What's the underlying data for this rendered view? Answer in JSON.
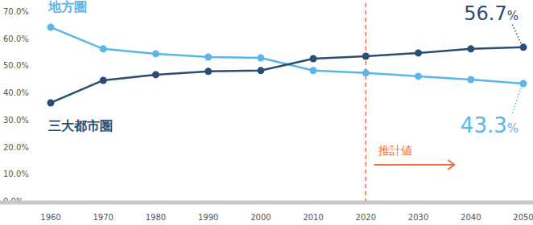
{
  "chart_data": {
    "type": "line",
    "x": [
      1960,
      1970,
      1980,
      1990,
      2000,
      2010,
      2020,
      2030,
      2040,
      2050
    ],
    "xlim": [
      1960,
      2050
    ],
    "xticks": [
      1960,
      1970,
      1980,
      1990,
      2000,
      2010,
      2020,
      2030,
      2040,
      2050
    ],
    "ylim": [
      0,
      70
    ],
    "yticks": [
      {
        "value": 0,
        "label": "0.0%"
      },
      {
        "value": 10,
        "label": "10.0%"
      },
      {
        "value": 20,
        "label": "20.0%"
      },
      {
        "value": 30,
        "label": "30.0%"
      },
      {
        "value": 40,
        "label": "40.0%"
      },
      {
        "value": 50,
        "label": "50.0%"
      },
      {
        "value": 60,
        "label": "60.0%"
      },
      {
        "value": 70,
        "label": "70.0%"
      }
    ],
    "grid": false,
    "marker": "circle",
    "series": [
      {
        "name": "地方圏",
        "color": "#5bb5e8",
        "values": [
          64.1,
          56.1,
          54.3,
          53.1,
          52.8,
          48.1,
          47.2,
          46.0,
          44.8,
          43.3
        ],
        "value_labels": [
          null,
          null,
          null,
          null,
          null,
          null,
          null,
          null,
          null,
          "43.3%"
        ]
      },
      {
        "name": "三大都市圏",
        "color": "#2b4c73",
        "values": [
          36.2,
          44.5,
          46.6,
          47.8,
          48.1,
          52.5,
          53.4,
          54.6,
          56.1,
          56.7
        ],
        "value_labels": [
          null,
          null,
          null,
          null,
          null,
          null,
          null,
          null,
          null,
          "56.7%"
        ]
      }
    ],
    "annotations": [
      {
        "text": "推計値",
        "x": 2020,
        "color": "#ef6a3c"
      }
    ]
  }
}
